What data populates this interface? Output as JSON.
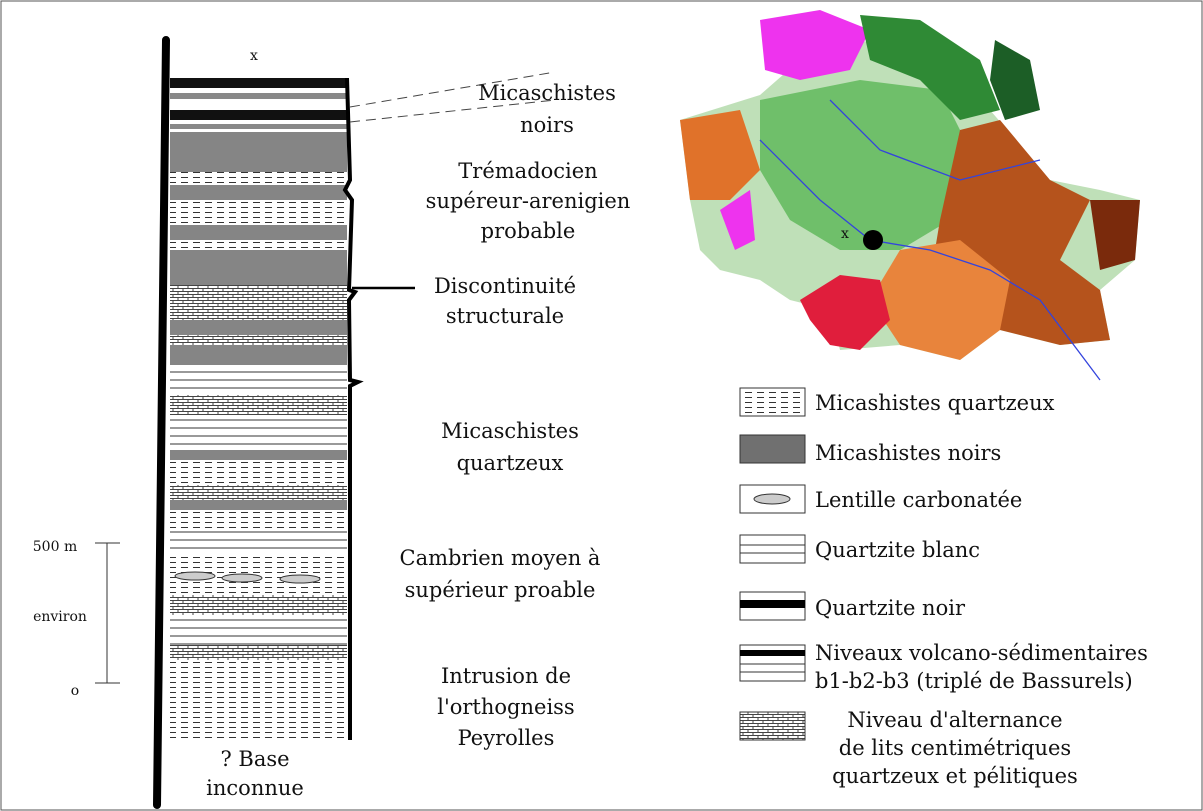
{
  "column": {
    "top_mark": "x",
    "labels": [
      {
        "lines": [
          "Micaschistes",
          "noirs"
        ]
      },
      {
        "lines": [
          "Trémadocien",
          "supéreur-arenigien",
          "probable"
        ]
      },
      {
        "lines": [
          "Discontinuité",
          "structurale"
        ]
      },
      {
        "lines": [
          "Micaschistes",
          "quartzeux"
        ]
      },
      {
        "lines": [
          "Cambrien moyen à",
          "supérieur proable"
        ]
      },
      {
        "lines": [
          "Intrusion de",
          "l'orthogneiss",
          "Peyrolles"
        ]
      }
    ],
    "base": {
      "lines": [
        "? Base",
        "inconnue"
      ]
    }
  },
  "scale": {
    "top": "500 m",
    "middle": "environ",
    "bottom": "o"
  },
  "map": {
    "marker": "x"
  },
  "legend": [
    {
      "lines": [
        "Micashistes quartzeux"
      ]
    },
    {
      "lines": [
        "Micashistes noirs"
      ]
    },
    {
      "lines": [
        "Lentille carbonatée"
      ]
    },
    {
      "lines": [
        "Quartzite blanc"
      ]
    },
    {
      "lines": [
        "Quartzite noir"
      ]
    },
    {
      "lines": [
        "Niveaux volcano-sédimentaires",
        "b1-b2-b3 (triplé de Bassurels)"
      ]
    },
    {
      "lines": [
        "Niveau d'alternance",
        "de lits centimétriques",
        "quartzeux et pélitiques"
      ]
    }
  ]
}
